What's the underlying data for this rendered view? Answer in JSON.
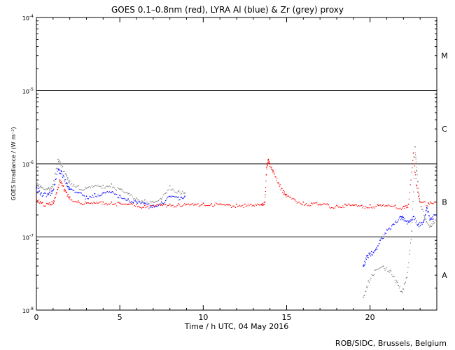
{
  "chart_data": {
    "type": "scatter",
    "title": "GOES 0.1–0.8nm (red), LYRA Al (blue) & Zr (grey) proxy",
    "xlabel": "Time / h UTC, 04 May 2016",
    "ylabel": "GOES Irradiance / (W m⁻²)",
    "xlim": [
      0,
      24
    ],
    "ylim": [
      1e-08,
      0.0001
    ],
    "yscale": "log",
    "x_ticks": [
      0,
      5,
      10,
      15,
      20
    ],
    "x_tick_labels": [
      "0",
      "5",
      "10",
      "15",
      "20"
    ],
    "y_ticks": [
      1e-08,
      1e-07,
      1e-06,
      1e-05,
      0.0001
    ],
    "y_tick_labels": [
      {
        "base": "10",
        "exp": "-8"
      },
      {
        "base": "10",
        "exp": "-7"
      },
      {
        "base": "10",
        "exp": "-6"
      },
      {
        "base": "10",
        "exp": "-5"
      },
      {
        "base": "10",
        "exp": "-4"
      }
    ],
    "class_lines": [
      1e-07,
      1e-06,
      1e-05
    ],
    "class_labels": [
      {
        "label": "A",
        "y": 3e-08
      },
      {
        "label": "B",
        "y": 3e-07
      },
      {
        "label": "C",
        "y": 3e-06
      },
      {
        "label": "M",
        "y": 3e-05
      }
    ],
    "grid": false,
    "series": [
      {
        "color": "#ff0000",
        "points": [
          [
            0.0,
            3.3e-07
          ],
          [
            0.3,
            2.9e-07
          ],
          [
            0.7,
            2.8e-07
          ],
          [
            1.0,
            3e-07
          ],
          [
            1.2,
            4e-07
          ],
          [
            1.4,
            6e-07
          ],
          [
            1.6,
            5e-07
          ],
          [
            1.8,
            4.1e-07
          ],
          [
            2.0,
            3.5e-07
          ],
          [
            2.5,
            3.1e-07
          ],
          [
            3.0,
            2.9e-07
          ],
          [
            3.5,
            2.9e-07
          ],
          [
            4.0,
            3e-07
          ],
          [
            4.5,
            3e-07
          ],
          [
            5.0,
            2.9e-07
          ],
          [
            5.5,
            2.8e-07
          ],
          [
            6.0,
            2.8e-07
          ],
          [
            6.5,
            2.7e-07
          ],
          [
            7.0,
            2.7e-07
          ],
          [
            7.5,
            2.75e-07
          ],
          [
            8.0,
            2.8e-07
          ],
          [
            8.5,
            2.85e-07
          ],
          [
            9.0,
            2.8e-07
          ],
          [
            9.5,
            2.8e-07
          ],
          [
            10.0,
            2.9e-07
          ],
          [
            10.5,
            2.85e-07
          ],
          [
            11.0,
            2.8e-07
          ],
          [
            11.5,
            2.75e-07
          ],
          [
            12.0,
            2.8e-07
          ],
          [
            12.5,
            2.8e-07
          ],
          [
            13.0,
            2.7e-07
          ],
          [
            13.5,
            2.75e-07
          ],
          [
            13.7,
            3e-07
          ],
          [
            13.8,
            9e-07
          ],
          [
            13.9,
            1.15e-06
          ],
          [
            14.0,
            1e-06
          ],
          [
            14.2,
            8e-07
          ],
          [
            14.5,
            5.5e-07
          ],
          [
            14.8,
            4.3e-07
          ],
          [
            15.0,
            3.8e-07
          ],
          [
            15.5,
            3.2e-07
          ],
          [
            16.0,
            3e-07
          ],
          [
            16.5,
            2.9e-07
          ],
          [
            17.0,
            2.8e-07
          ],
          [
            17.5,
            2.75e-07
          ],
          [
            18.0,
            2.7e-07
          ],
          [
            18.5,
            2.8e-07
          ],
          [
            19.0,
            2.7e-07
          ],
          [
            19.5,
            2.7e-07
          ],
          [
            20.0,
            2.75e-07
          ],
          [
            20.5,
            2.7e-07
          ],
          [
            21.0,
            2.65e-07
          ],
          [
            21.5,
            2.7e-07
          ],
          [
            22.0,
            2.6e-07
          ],
          [
            22.3,
            2.8e-07
          ],
          [
            22.6,
            1.4e-06
          ],
          [
            22.8,
            5e-07
          ],
          [
            23.0,
            3e-07
          ],
          [
            23.5,
            2.9e-07
          ],
          [
            23.9,
            3e-07
          ]
        ]
      },
      {
        "color": "#0000ff",
        "points": [
          [
            0.0,
            4.8e-07
          ],
          [
            0.3,
            4e-07
          ],
          [
            0.7,
            3.9e-07
          ],
          [
            1.0,
            4.3e-07
          ],
          [
            1.3,
            8.5e-07
          ],
          [
            1.5,
            7.8e-07
          ],
          [
            1.8,
            5.5e-07
          ],
          [
            2.0,
            4.5e-07
          ],
          [
            2.5,
            4e-07
          ],
          [
            3.0,
            3.6e-07
          ],
          [
            3.5,
            3.9e-07
          ],
          [
            4.0,
            4e-07
          ],
          [
            4.5,
            4.1e-07
          ],
          [
            5.0,
            3.7e-07
          ],
          [
            5.5,
            3.3e-07
          ],
          [
            6.0,
            3e-07
          ],
          [
            6.5,
            2.9e-07
          ],
          [
            7.0,
            2.7e-07
          ],
          [
            7.5,
            3e-07
          ],
          [
            8.0,
            3.6e-07
          ],
          [
            8.5,
            3.5e-07
          ],
          [
            8.9,
            3.6e-07
          ],
          [
            19.6,
            4e-08
          ],
          [
            19.8,
            5.5e-08
          ],
          [
            20.0,
            6e-08
          ],
          [
            20.3,
            6.5e-08
          ],
          [
            20.6,
            9e-08
          ],
          [
            21.0,
            1.25e-07
          ],
          [
            21.4,
            1.5e-07
          ],
          [
            21.8,
            1.9e-07
          ],
          [
            22.0,
            1.85e-07
          ],
          [
            22.3,
            1.6e-07
          ],
          [
            22.6,
            1.9e-07
          ],
          [
            22.9,
            1.5e-07
          ],
          [
            23.2,
            1.6e-07
          ],
          [
            23.4,
            2.5e-07
          ],
          [
            23.6,
            1.8e-07
          ],
          [
            23.9,
            2e-07
          ]
        ]
      },
      {
        "color": "#808080",
        "points": [
          [
            0.0,
            5.8e-07
          ],
          [
            0.3,
            4.8e-07
          ],
          [
            0.7,
            4.6e-07
          ],
          [
            1.0,
            5.2e-07
          ],
          [
            1.3,
            1.15e-06
          ],
          [
            1.5,
            1e-06
          ],
          [
            1.8,
            7e-07
          ],
          [
            2.0,
            5.8e-07
          ],
          [
            2.5,
            5e-07
          ],
          [
            3.0,
            4.6e-07
          ],
          [
            3.5,
            5e-07
          ],
          [
            4.0,
            5.1e-07
          ],
          [
            4.5,
            5.3e-07
          ],
          [
            5.0,
            4.5e-07
          ],
          [
            5.5,
            3.9e-07
          ],
          [
            6.0,
            3.4e-07
          ],
          [
            6.5,
            3.2e-07
          ],
          [
            7.0,
            3e-07
          ],
          [
            7.5,
            3.3e-07
          ],
          [
            8.0,
            5e-07
          ],
          [
            8.5,
            4.2e-07
          ],
          [
            8.9,
            4e-07
          ],
          [
            19.6,
            1.5e-08
          ],
          [
            19.9,
            2.5e-08
          ],
          [
            20.3,
            3.5e-08
          ],
          [
            20.8,
            4e-08
          ],
          [
            21.2,
            3.5e-08
          ],
          [
            21.6,
            2.5e-08
          ],
          [
            21.9,
            1.8e-08
          ],
          [
            22.2,
            2.8e-08
          ],
          [
            22.5,
            1.2e-07
          ],
          [
            22.7,
            1.7e-06
          ],
          [
            22.8,
            8e-07
          ],
          [
            23.0,
            3e-07
          ],
          [
            23.3,
            1.8e-07
          ],
          [
            23.6,
            1.4e-07
          ],
          [
            23.9,
            1.7e-07
          ]
        ]
      }
    ]
  },
  "footer": {
    "credit": "ROB/SIDC, Brussels, Belgium"
  }
}
